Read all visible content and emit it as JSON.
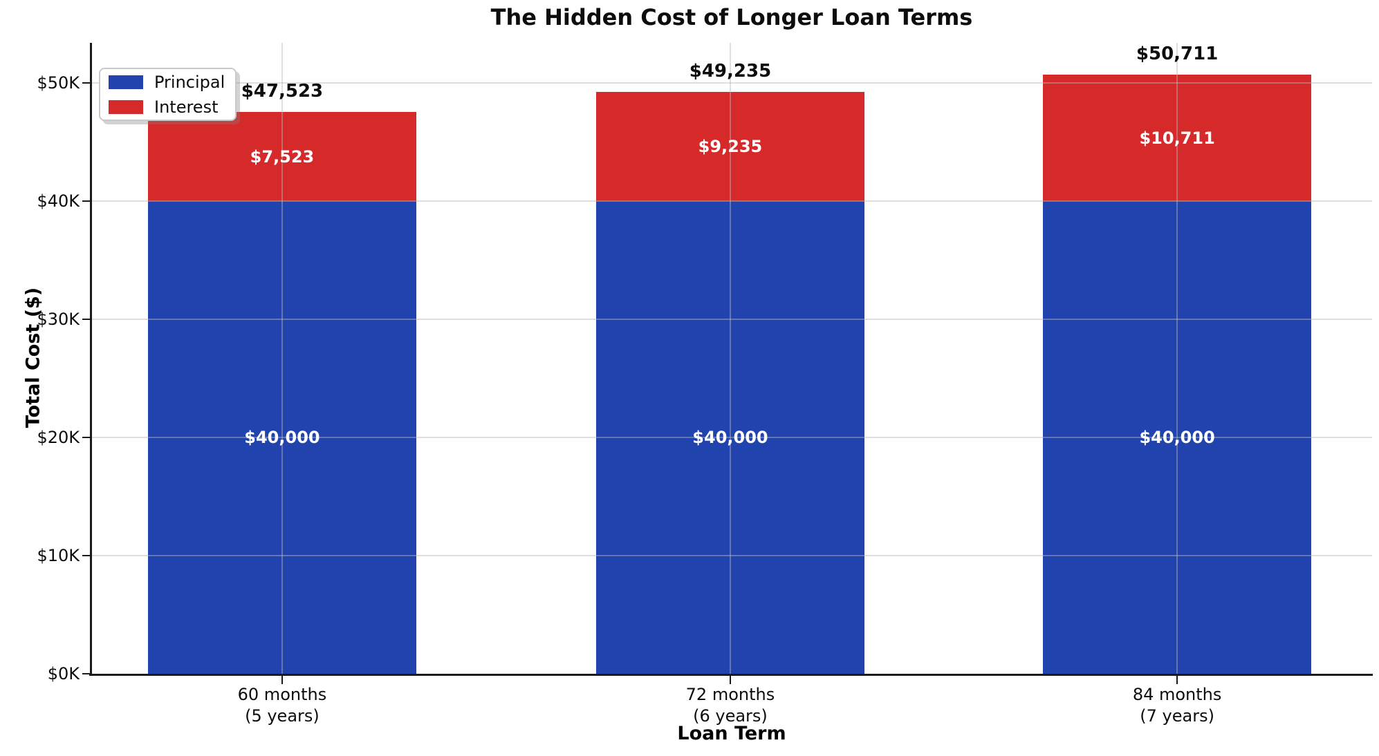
{
  "title": "The Hidden Cost of Longer Loan Terms",
  "axes": {
    "xlabel": "Loan Term",
    "ylabel": "Total Cost ($)"
  },
  "legend": {
    "items": [
      {
        "label": "Principal",
        "color": "#2143ad"
      },
      {
        "label": "Interest",
        "color": "#d62a2a"
      }
    ]
  },
  "colors": {
    "principal": "#2143ad",
    "interest": "#d62a2a",
    "axis": "#1a1a1a",
    "grid": "#bdbdbd",
    "inside_label": "#ffffff",
    "total_label": "#0d0d0d"
  },
  "chart_data": {
    "type": "bar",
    "stacked": true,
    "title": "The Hidden Cost of Longer Loan Terms",
    "xlabel": "Loan Term",
    "ylabel": "Total Cost ($)",
    "categories": [
      [
        "60 months",
        "(5 years)"
      ],
      [
        "72 months",
        "(6 years)"
      ],
      [
        "84 months",
        "(7 years)"
      ]
    ],
    "series": [
      {
        "name": "Principal",
        "color": "#2143ad",
        "values": [
          40000,
          40000,
          40000
        ],
        "labels": [
          "$40,000",
          "$40,000",
          "$40,000"
        ]
      },
      {
        "name": "Interest",
        "color": "#d62a2a",
        "values": [
          7523,
          9235,
          10711
        ],
        "labels": [
          "$7,523",
          "$9,235",
          "$10,711"
        ]
      }
    ],
    "totals": {
      "values": [
        47523,
        49235,
        50711
      ],
      "labels": [
        "$47,523",
        "$49,235",
        "$50,711"
      ]
    },
    "yticks": {
      "values": [
        0,
        10000,
        20000,
        30000,
        40000,
        50000
      ],
      "labels": [
        "$0K",
        "$10K",
        "$20K",
        "$30K",
        "$40K",
        "$50K"
      ]
    },
    "ylim": [
      0,
      53400
    ],
    "grid": true,
    "legend_position": "upper left"
  }
}
